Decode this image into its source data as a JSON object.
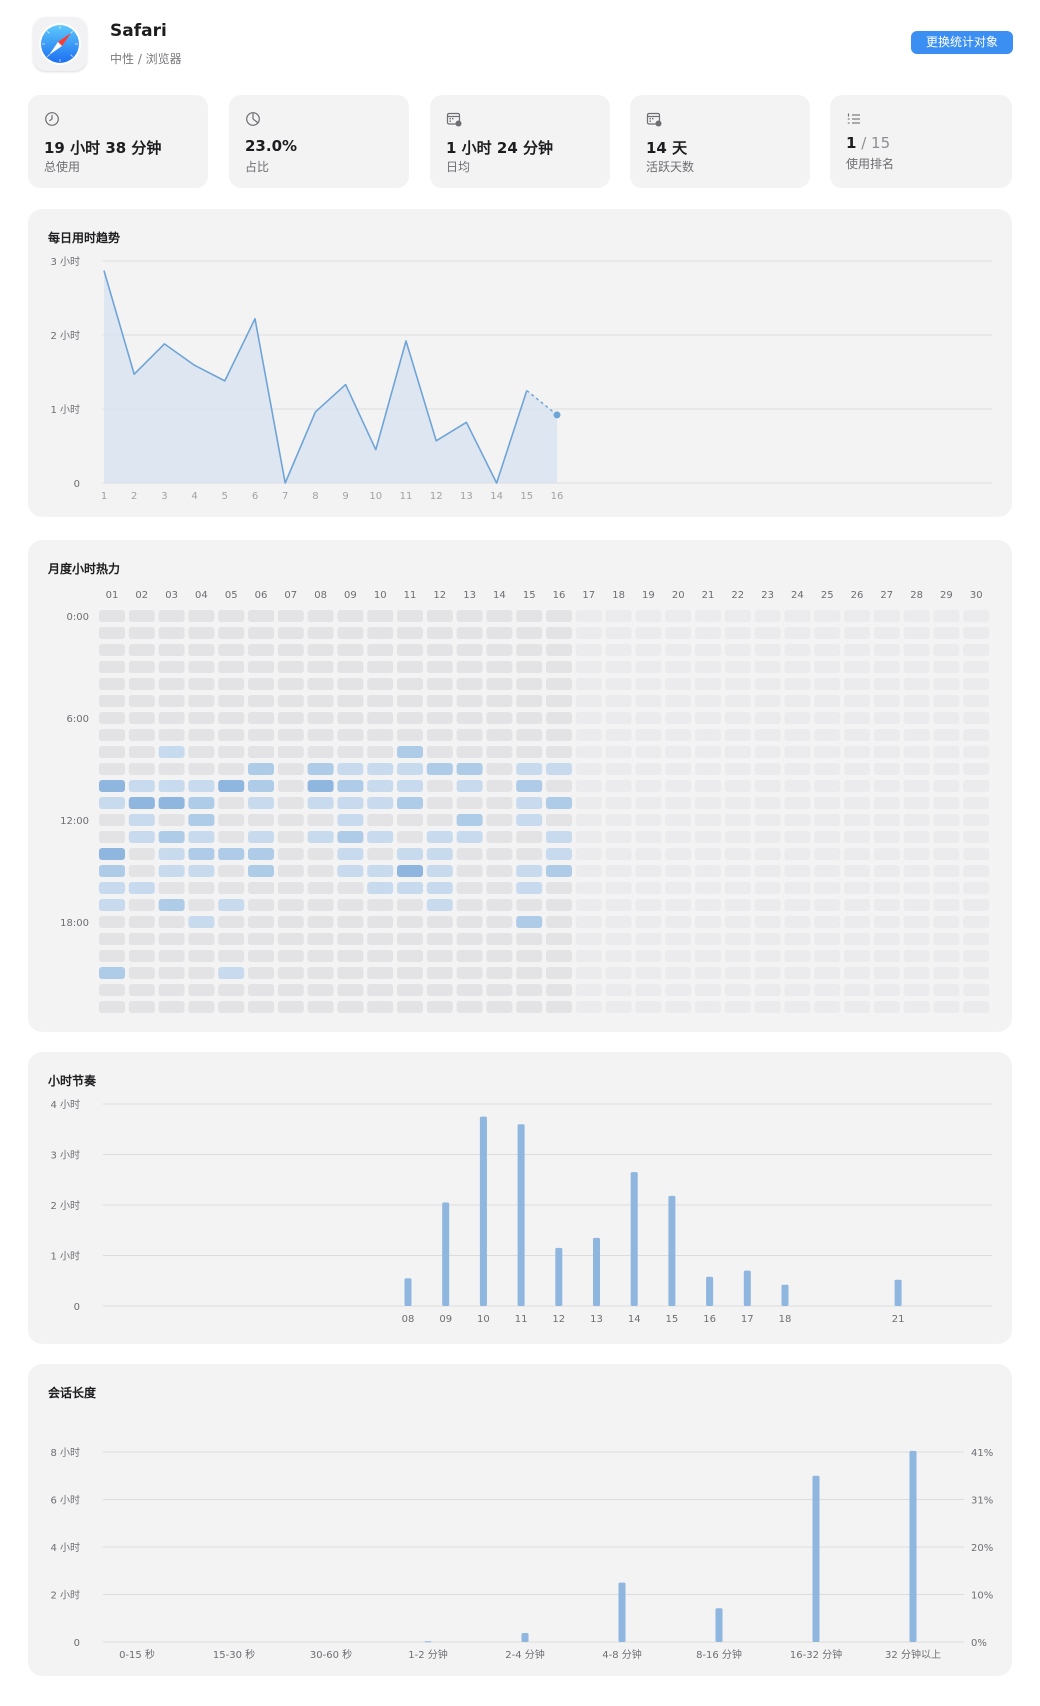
{
  "header": {
    "app_name": "Safari",
    "category": "中性 / 浏览器",
    "switch_button": "更换统计对象",
    "accent_color": "#3b8ff2"
  },
  "stats": [
    {
      "icon": "clock-icon",
      "value": "19 小时 38 分钟",
      "label": "总使用"
    },
    {
      "icon": "pie-chart-icon",
      "value": "23.0%",
      "label": "占比"
    },
    {
      "icon": "calendar-clock-icon",
      "value": "1 小时 24 分钟",
      "label": "日均"
    },
    {
      "icon": "calendar-check-icon",
      "value": "14 天",
      "label": "活跃天数"
    },
    {
      "icon": "list-rank-icon",
      "value": "1",
      "value_suffix": " / 15",
      "label": "使用排名"
    }
  ],
  "daily_trend": {
    "title": "每日用时趋势",
    "chart_data": {
      "type": "area",
      "x": [
        1,
        2,
        3,
        4,
        5,
        6,
        7,
        8,
        9,
        10,
        11,
        12,
        13,
        14,
        15,
        16
      ],
      "values": [
        2.87,
        1.47,
        1.88,
        1.59,
        1.38,
        2.22,
        0.0,
        0.96,
        1.33,
        0.45,
        1.92,
        0.57,
        0.82,
        0.0,
        1.25,
        0.92
      ],
      "unit": "小时",
      "y_ticks": [
        "0",
        "1 小时",
        "2 小时",
        "3 小时"
      ],
      "ylim": [
        0,
        3
      ],
      "grid": true,
      "last_segment_dashed": true,
      "color": "#6fa4d6"
    }
  },
  "heatmap": {
    "title": "月度小时热力",
    "chart_data": {
      "type": "heatmap",
      "columns": [
        "01",
        "02",
        "03",
        "04",
        "05",
        "06",
        "07",
        "08",
        "09",
        "10",
        "11",
        "12",
        "13",
        "14",
        "15",
        "16",
        "17",
        "18",
        "19",
        "20",
        "21",
        "22",
        "23",
        "24",
        "25",
        "26",
        "27",
        "28",
        "29",
        "30"
      ],
      "row_labels": [
        {
          "row": 0,
          "label": "0:00"
        },
        {
          "row": 6,
          "label": "6:00"
        },
        {
          "row": 12,
          "label": "12:00"
        },
        {
          "row": 18,
          "label": "18:00"
        }
      ],
      "rows": 24,
      "active_days": 16,
      "levels": [
        [
          1,
          1,
          1,
          1,
          1,
          1,
          1,
          1,
          1,
          1,
          1,
          1,
          1,
          1,
          1,
          1
        ],
        [
          1,
          1,
          1,
          1,
          1,
          1,
          1,
          1,
          1,
          1,
          1,
          1,
          1,
          1,
          1,
          1
        ],
        [
          1,
          1,
          1,
          1,
          1,
          1,
          1,
          1,
          1,
          1,
          1,
          1,
          1,
          1,
          1,
          1
        ],
        [
          1,
          1,
          1,
          1,
          1,
          1,
          1,
          1,
          1,
          1,
          1,
          1,
          1,
          1,
          1,
          1
        ],
        [
          1,
          1,
          1,
          1,
          1,
          1,
          1,
          1,
          1,
          1,
          1,
          1,
          1,
          1,
          1,
          1
        ],
        [
          1,
          1,
          1,
          1,
          1,
          1,
          1,
          1,
          1,
          1,
          1,
          1,
          1,
          1,
          1,
          1
        ],
        [
          1,
          1,
          1,
          1,
          1,
          1,
          1,
          1,
          1,
          1,
          1,
          1,
          1,
          1,
          1,
          1
        ],
        [
          1,
          1,
          1,
          1,
          1,
          1,
          1,
          1,
          1,
          1,
          1,
          1,
          1,
          1,
          1,
          1
        ],
        [
          1,
          1,
          2,
          1,
          1,
          1,
          1,
          1,
          1,
          1,
          3,
          1,
          1,
          1,
          1,
          1
        ],
        [
          1,
          1,
          1,
          1,
          1,
          3,
          1,
          3,
          2,
          2,
          2,
          3,
          3,
          1,
          2,
          2
        ],
        [
          4,
          2,
          2,
          2,
          4,
          3,
          1,
          4,
          3,
          2,
          2,
          1,
          2,
          1,
          3,
          1
        ],
        [
          2,
          4,
          4,
          3,
          1,
          2,
          1,
          2,
          2,
          2,
          3,
          1,
          1,
          1,
          2,
          3
        ],
        [
          1,
          2,
          1,
          3,
          1,
          1,
          1,
          1,
          2,
          1,
          1,
          1,
          3,
          1,
          2,
          1
        ],
        [
          1,
          2,
          3,
          2,
          1,
          2,
          1,
          2,
          3,
          2,
          1,
          2,
          2,
          1,
          1,
          2
        ],
        [
          4,
          1,
          2,
          3,
          3,
          3,
          1,
          1,
          2,
          1,
          2,
          2,
          1,
          1,
          1,
          2
        ],
        [
          3,
          1,
          2,
          2,
          1,
          3,
          1,
          1,
          2,
          2,
          4,
          2,
          1,
          1,
          2,
          3
        ],
        [
          2,
          2,
          1,
          1,
          1,
          1,
          1,
          1,
          1,
          2,
          2,
          2,
          1,
          1,
          2,
          1
        ],
        [
          2,
          1,
          3,
          1,
          2,
          1,
          1,
          1,
          1,
          1,
          1,
          2,
          1,
          1,
          1,
          1
        ],
        [
          1,
          1,
          1,
          2,
          1,
          1,
          1,
          1,
          1,
          1,
          1,
          1,
          1,
          1,
          3,
          1
        ],
        [
          1,
          1,
          1,
          1,
          1,
          1,
          1,
          1,
          1,
          1,
          1,
          1,
          1,
          1,
          1,
          1
        ],
        [
          1,
          1,
          1,
          1,
          1,
          1,
          1,
          1,
          1,
          1,
          1,
          1,
          1,
          1,
          1,
          1
        ],
        [
          3,
          1,
          1,
          1,
          2,
          1,
          1,
          1,
          1,
          1,
          1,
          1,
          1,
          1,
          1,
          1
        ],
        [
          1,
          1,
          1,
          1,
          1,
          1,
          1,
          1,
          1,
          1,
          1,
          1,
          1,
          1,
          1,
          1
        ],
        [
          1,
          1,
          1,
          1,
          1,
          1,
          1,
          1,
          1,
          1,
          1,
          1,
          1,
          1,
          1,
          1
        ]
      ],
      "level_colors": [
        "#ebebed",
        "#e3e3e6",
        "#c8dbee",
        "#aecbe7",
        "#8eb6de"
      ]
    }
  },
  "hourly": {
    "title": "小时节奏",
    "chart_data": {
      "type": "bar",
      "categories": [
        "08",
        "09",
        "10",
        "11",
        "12",
        "13",
        "14",
        "15",
        "16",
        "17",
        "18",
        "21"
      ],
      "hours": [
        8,
        9,
        10,
        11,
        12,
        13,
        14,
        15,
        16,
        17,
        18,
        21
      ],
      "values": [
        0.55,
        2.05,
        3.75,
        3.6,
        1.15,
        1.35,
        2.65,
        2.18,
        0.58,
        0.7,
        0.42,
        0.52
      ],
      "unit": "小时",
      "y_ticks": [
        "0",
        "1 小时",
        "2 小时",
        "3 小时",
        "4 小时"
      ],
      "ylim": [
        0,
        4
      ],
      "grid": true,
      "color": "#8eb6de"
    }
  },
  "sessions": {
    "title": "会话长度",
    "chart_data": {
      "type": "bar",
      "categories": [
        "0-15 秒",
        "15-30 秒",
        "30-60 秒",
        "1-2 分钟",
        "2-4 分钟",
        "4-8 分钟",
        "8-16 分钟",
        "16-32 分钟",
        "32 分钟以上"
      ],
      "values": [
        0,
        0,
        0,
        0.03,
        0.38,
        2.5,
        1.42,
        7.0,
        8.05
      ],
      "unit": "小时",
      "y_ticks": [
        "0",
        "2 小时",
        "4 小时",
        "6 小时",
        "8 小时"
      ],
      "y_right_ticks": [
        "0%",
        "10%",
        "20%",
        "31%",
        "41%"
      ],
      "ylim": [
        0,
        8
      ],
      "grid": true,
      "color": "#8eb6de"
    }
  }
}
